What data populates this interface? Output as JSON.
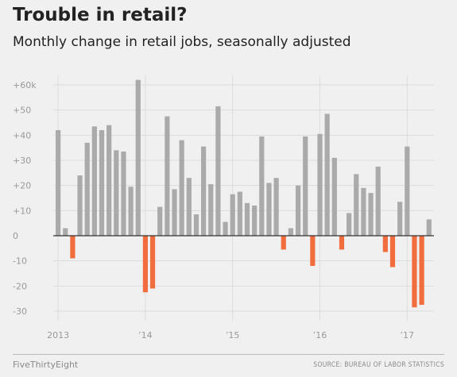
{
  "header": {
    "title": "Trouble in retail?",
    "subtitle": "Monthly change in retail jobs, seasonally adjusted"
  },
  "footer": {
    "brand": "FiveThirtyEight",
    "source": "SOURCE: BUREAU OF LABOR STATISTICS"
  },
  "colors": {
    "positive": "#aaaaaa",
    "negative": "#f26d3d",
    "grid": "#dcdcdc",
    "zero_line": "#333333",
    "background": "#f0f0f0"
  },
  "chart_data": {
    "type": "bar",
    "title": "Trouble in retail?",
    "subtitle": "Monthly change in retail jobs, seasonally adjusted",
    "xlabel": "",
    "ylabel": "",
    "ylim": [
      -33,
      64
    ],
    "y_ticks": [
      60,
      50,
      40,
      30,
      20,
      10,
      0,
      -10,
      -20,
      -30
    ],
    "y_tick_labels": [
      "+60k",
      "+50",
      "+40",
      "+30",
      "+20",
      "+10",
      "0",
      "-10",
      "-20",
      "-30"
    ],
    "x_tick_labels": [
      "2013",
      "’14",
      "’15",
      "’16",
      "’17"
    ],
    "x_tick_month_index": [
      0,
      12,
      24,
      36,
      48
    ],
    "grid": true,
    "unit": "thousands of jobs",
    "values": [
      42,
      3,
      -9,
      24,
      37,
      43.5,
      42,
      44,
      34,
      33.5,
      19.5,
      62,
      -22.5,
      -21,
      11.5,
      47.5,
      18.5,
      38,
      23,
      8.5,
      35.5,
      20.5,
      51.5,
      5.5,
      16.5,
      17.5,
      13,
      12,
      39.5,
      21,
      23,
      -5.5,
      3,
      20,
      39.5,
      -12,
      40.5,
      48.5,
      31,
      -5.5,
      9,
      24.5,
      19,
      17,
      27.5,
      -6.5,
      -12.5,
      13.5,
      35.5,
      -28.5,
      -27.5,
      6.5
    ]
  }
}
